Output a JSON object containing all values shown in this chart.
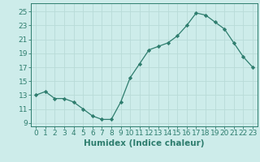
{
  "x": [
    0,
    1,
    2,
    3,
    4,
    5,
    6,
    7,
    8,
    9,
    10,
    11,
    12,
    13,
    14,
    15,
    16,
    17,
    18,
    19,
    20,
    21,
    22,
    23
  ],
  "y": [
    13,
    13.5,
    12.5,
    12.5,
    12,
    11,
    10,
    9.5,
    9.5,
    12,
    15.5,
    17.5,
    19.5,
    20,
    20.5,
    21.5,
    23,
    24.8,
    24.5,
    23.5,
    22.5,
    20.5,
    18.5,
    17
  ],
  "line_color": "#2e7d6e",
  "marker": "D",
  "marker_size": 2.2,
  "bg_color": "#cdecea",
  "grid_color": "#b8dbd8",
  "xlabel": "Humidex (Indice chaleur)",
  "ylim": [
    8.5,
    26.2
  ],
  "xlim": [
    -0.5,
    23.5
  ],
  "yticks": [
    9,
    11,
    13,
    15,
    17,
    19,
    21,
    23,
    25
  ],
  "xticks": [
    0,
    1,
    2,
    3,
    4,
    5,
    6,
    7,
    8,
    9,
    10,
    11,
    12,
    13,
    14,
    15,
    16,
    17,
    18,
    19,
    20,
    21,
    22,
    23
  ],
  "xlabel_fontsize": 7.5,
  "tick_fontsize": 6.5,
  "fig_width": 3.2,
  "fig_height": 2.0,
  "dpi": 100
}
